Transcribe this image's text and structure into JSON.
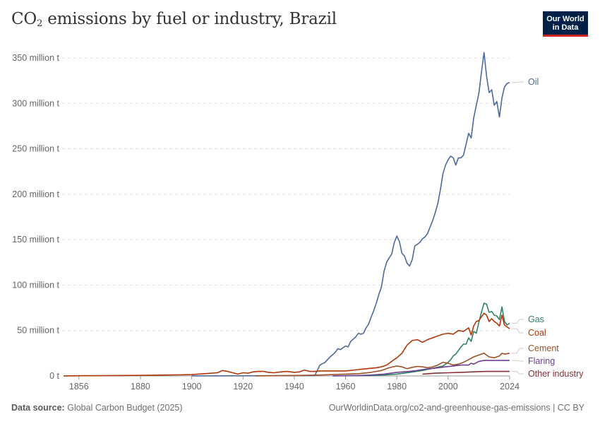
{
  "header": {
    "title_main": "CO",
    "title_sub": "2",
    "title_rest": " emissions by fuel or industry, Brazil",
    "logo_line1": "Our World",
    "logo_line2": "in Data"
  },
  "footer": {
    "source_label": "Data source:",
    "source_text": "Global Carbon Budget (2025)",
    "link_text": "OurWorldinData.org/co2-and-greenhouse-gas-emissions | CC BY"
  },
  "chart_data": {
    "type": "line",
    "title": "CO₂ emissions by fuel or industry, Brazil",
    "x_ticks": [
      "1856",
      "1880",
      "1900",
      "1920",
      "1940",
      "1960",
      "1980",
      "2000",
      "2024"
    ],
    "y_ticks": [
      "0 t",
      "50 million t",
      "100 million t",
      "150 million t",
      "200 million t",
      "250 million t",
      "300 million t",
      "350 million t"
    ],
    "xlim": [
      1850,
      2024
    ],
    "ylim": [
      0,
      350
    ],
    "y_unit": "million t",
    "grid": "horizontal dashed",
    "legend": "right-end labels",
    "series": [
      {
        "name": "Oil",
        "color": "#4c6a9c",
        "points": [
          [
            1900,
            0.1
          ],
          [
            1940,
            0.3
          ],
          [
            1948,
            0.5
          ],
          [
            1950,
            12
          ],
          [
            1952,
            15
          ],
          [
            1954,
            21
          ],
          [
            1956,
            26
          ],
          [
            1957,
            30
          ],
          [
            1958,
            29
          ],
          [
            1960,
            33
          ],
          [
            1961,
            32
          ],
          [
            1962,
            38
          ],
          [
            1964,
            43
          ],
          [
            1965,
            47
          ],
          [
            1966,
            46
          ],
          [
            1967,
            47
          ],
          [
            1968,
            53
          ],
          [
            1969,
            57
          ],
          [
            1970,
            65
          ],
          [
            1971,
            72
          ],
          [
            1972,
            80
          ],
          [
            1973,
            90
          ],
          [
            1974,
            98
          ],
          [
            1975,
            115
          ],
          [
            1976,
            125
          ],
          [
            1977,
            130
          ],
          [
            1978,
            134
          ],
          [
            1979,
            147
          ],
          [
            1980,
            154
          ],
          [
            1981,
            148
          ],
          [
            1982,
            135
          ],
          [
            1983,
            132
          ],
          [
            1984,
            124
          ],
          [
            1985,
            121
          ],
          [
            1986,
            128
          ],
          [
            1987,
            143
          ],
          [
            1988,
            145
          ],
          [
            1989,
            147
          ],
          [
            1990,
            151
          ],
          [
            1991,
            153
          ],
          [
            1992,
            157
          ],
          [
            1993,
            164
          ],
          [
            1994,
            171
          ],
          [
            1995,
            180
          ],
          [
            1996,
            190
          ],
          [
            1997,
            205
          ],
          [
            1998,
            223
          ],
          [
            1999,
            232
          ],
          [
            2000,
            238
          ],
          [
            2001,
            242
          ],
          [
            2002,
            240
          ],
          [
            2003,
            232
          ],
          [
            2004,
            240
          ],
          [
            2005,
            240
          ],
          [
            2006,
            243
          ],
          [
            2007,
            255
          ],
          [
            2008,
            267
          ],
          [
            2009,
            262
          ],
          [
            2010,
            284
          ],
          [
            2011,
            298
          ],
          [
            2012,
            311
          ],
          [
            2013,
            334
          ],
          [
            2014,
            356
          ],
          [
            2015,
            330
          ],
          [
            2016,
            312
          ],
          [
            2017,
            315
          ],
          [
            2018,
            298
          ],
          [
            2019,
            302
          ],
          [
            2020,
            285
          ],
          [
            2021,
            306
          ],
          [
            2022,
            318
          ],
          [
            2023,
            322
          ],
          [
            2024,
            323
          ]
        ]
      },
      {
        "name": "Gas",
        "color": "#2c8465",
        "points": [
          [
            1960,
            0.2
          ],
          [
            1970,
            0.5
          ],
          [
            1975,
            1
          ],
          [
            1980,
            2
          ],
          [
            1985,
            4
          ],
          [
            1990,
            6
          ],
          [
            1995,
            9
          ],
          [
            1998,
            11
          ],
          [
            2000,
            15
          ],
          [
            2001,
            18
          ],
          [
            2002,
            22
          ],
          [
            2003,
            24
          ],
          [
            2004,
            28
          ],
          [
            2005,
            32
          ],
          [
            2006,
            35
          ],
          [
            2007,
            35
          ],
          [
            2008,
            42
          ],
          [
            2009,
            38
          ],
          [
            2010,
            49
          ],
          [
            2011,
            47
          ],
          [
            2012,
            59
          ],
          [
            2013,
            70
          ],
          [
            2014,
            80
          ],
          [
            2015,
            79
          ],
          [
            2016,
            70
          ],
          [
            2017,
            71
          ],
          [
            2018,
            67
          ],
          [
            2019,
            66
          ],
          [
            2020,
            62
          ],
          [
            2021,
            76
          ],
          [
            2022,
            60
          ],
          [
            2023,
            56
          ],
          [
            2024,
            58
          ]
        ]
      },
      {
        "name": "Coal",
        "color": "#b13507",
        "points": [
          [
            1850,
            0.1
          ],
          [
            1856,
            0.2
          ],
          [
            1880,
            0.6
          ],
          [
            1890,
            1
          ],
          [
            1900,
            1.5
          ],
          [
            1905,
            2.5
          ],
          [
            1910,
            3.5
          ],
          [
            1912,
            6
          ],
          [
            1914,
            5
          ],
          [
            1916,
            3.5
          ],
          [
            1918,
            2
          ],
          [
            1920,
            3.5
          ],
          [
            1922,
            3
          ],
          [
            1924,
            4.5
          ],
          [
            1926,
            5
          ],
          [
            1928,
            5
          ],
          [
            1930,
            4
          ],
          [
            1932,
            3.5
          ],
          [
            1935,
            4.5
          ],
          [
            1937,
            5
          ],
          [
            1940,
            4
          ],
          [
            1942,
            4.5
          ],
          [
            1944,
            6.5
          ],
          [
            1946,
            5
          ],
          [
            1948,
            5
          ],
          [
            1950,
            5.5
          ],
          [
            1955,
            5.5
          ],
          [
            1960,
            5.5
          ],
          [
            1965,
            7
          ],
          [
            1970,
            8.5
          ],
          [
            1972,
            9
          ],
          [
            1974,
            10
          ],
          [
            1976,
            12
          ],
          [
            1978,
            16
          ],
          [
            1980,
            20
          ],
          [
            1982,
            25
          ],
          [
            1984,
            34
          ],
          [
            1986,
            39
          ],
          [
            1988,
            40
          ],
          [
            1990,
            37
          ],
          [
            1992,
            40
          ],
          [
            1994,
            42
          ],
          [
            1996,
            44
          ],
          [
            1998,
            46
          ],
          [
            2000,
            47
          ],
          [
            2002,
            46
          ],
          [
            2004,
            50
          ],
          [
            2006,
            49
          ],
          [
            2008,
            53
          ],
          [
            2009,
            45
          ],
          [
            2010,
            55
          ],
          [
            2011,
            60
          ],
          [
            2012,
            61
          ],
          [
            2013,
            65
          ],
          [
            2014,
            69
          ],
          [
            2015,
            67
          ],
          [
            2016,
            60
          ],
          [
            2017,
            63
          ],
          [
            2018,
            60
          ],
          [
            2019,
            58
          ],
          [
            2020,
            55
          ],
          [
            2021,
            67
          ],
          [
            2022,
            56
          ],
          [
            2023,
            54
          ],
          [
            2024,
            52
          ]
        ]
      },
      {
        "name": "Cement",
        "color": "#9a5129",
        "points": [
          [
            1925,
            0.1
          ],
          [
            1940,
            0.5
          ],
          [
            1950,
            1
          ],
          [
            1955,
            1.5
          ],
          [
            1960,
            2
          ],
          [
            1965,
            2.5
          ],
          [
            1970,
            4
          ],
          [
            1974,
            6
          ],
          [
            1977,
            9
          ],
          [
            1980,
            11
          ],
          [
            1982,
            10
          ],
          [
            1984,
            8
          ],
          [
            1986,
            9.5
          ],
          [
            1988,
            10.5
          ],
          [
            1990,
            10
          ],
          [
            1992,
            9
          ],
          [
            1994,
            10
          ],
          [
            1996,
            12
          ],
          [
            1998,
            15
          ],
          [
            2000,
            14
          ],
          [
            2002,
            12
          ],
          [
            2004,
            13
          ],
          [
            2006,
            15
          ],
          [
            2008,
            18
          ],
          [
            2010,
            21
          ],
          [
            2012,
            23
          ],
          [
            2014,
            25
          ],
          [
            2016,
            21
          ],
          [
            2018,
            20
          ],
          [
            2020,
            22
          ],
          [
            2021,
            25
          ],
          [
            2022,
            24
          ],
          [
            2024,
            25
          ]
        ]
      },
      {
        "name": "Flaring",
        "color": "#6d3e91",
        "points": [
          [
            1955,
            0.1
          ],
          [
            1965,
            0.5
          ],
          [
            1970,
            1
          ],
          [
            1975,
            2
          ],
          [
            1980,
            4
          ],
          [
            1985,
            5
          ],
          [
            1988,
            6
          ],
          [
            1990,
            7
          ],
          [
            1993,
            8
          ],
          [
            1996,
            9
          ],
          [
            1999,
            10
          ],
          [
            2002,
            11
          ],
          [
            2005,
            12
          ],
          [
            2008,
            12
          ],
          [
            2009,
            14
          ],
          [
            2010,
            13
          ],
          [
            2012,
            16
          ],
          [
            2014,
            17
          ],
          [
            2016,
            17
          ],
          [
            2018,
            17
          ],
          [
            2020,
            17
          ],
          [
            2022,
            17
          ],
          [
            2024,
            17
          ]
        ]
      },
      {
        "name": "Other industry",
        "color": "#883039",
        "points": [
          [
            1990,
            2
          ],
          [
            1995,
            3
          ],
          [
            2000,
            3.5
          ],
          [
            2005,
            4
          ],
          [
            2010,
            4.5
          ],
          [
            2015,
            5
          ],
          [
            2020,
            5
          ],
          [
            2024,
            5
          ]
        ]
      }
    ]
  }
}
